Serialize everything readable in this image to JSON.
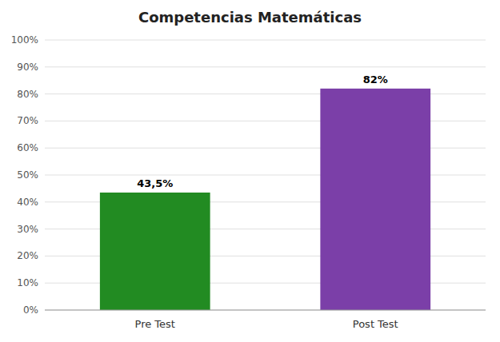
{
  "chart_data": {
    "type": "bar",
    "title": "Competencias Matemáticas",
    "categories": [
      "Pre Test",
      "Post Test"
    ],
    "values": [
      43.5,
      82.0
    ],
    "value_labels": [
      "43,5%",
      "82%"
    ],
    "colors": [
      "#228B22",
      "#7B3FA8"
    ],
    "ylim": [
      0,
      100
    ],
    "yticks": [
      {
        "value": 0,
        "label": "0%"
      },
      {
        "value": 10,
        "label": "10%"
      },
      {
        "value": 20,
        "label": "20%"
      },
      {
        "value": 30,
        "label": "30%"
      },
      {
        "value": 40,
        "label": "40%"
      },
      {
        "value": 50,
        "label": "50%"
      },
      {
        "value": 60,
        "label": "60%"
      },
      {
        "value": 70,
        "label": "70%"
      },
      {
        "value": 80,
        "label": "80%"
      },
      {
        "value": 90,
        "label": "90%"
      },
      {
        "value": 100,
        "label": "100%"
      }
    ],
    "grid": true,
    "data_labels": true
  }
}
